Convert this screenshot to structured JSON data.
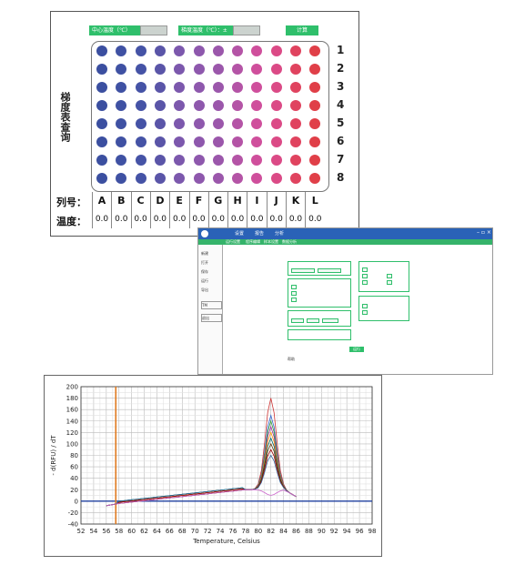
{
  "plate": {
    "center_temp_label": "中心温度（℃）",
    "gradient_temp_label": "梯度温度（℃）：±",
    "calc_button": "计算",
    "side_title": "梯度表查询",
    "row_numbers": [
      "1",
      "2",
      "3",
      "4",
      "5",
      "6",
      "7",
      "8"
    ],
    "column_header_label": "列号：",
    "temperature_label": "温度：",
    "columns": [
      "A",
      "B",
      "C",
      "D",
      "E",
      "F",
      "G",
      "H",
      "I",
      "J",
      "K",
      "L"
    ],
    "temperatures": [
      "0.0",
      "0.0",
      "0.0",
      "0.0",
      "0.0",
      "0.0",
      "0.0",
      "0.0",
      "0.0",
      "0.0",
      "0.0",
      "0.0"
    ],
    "column_colors": [
      "#3b4fa0",
      "#3f51a3",
      "#4553a6",
      "#5a55a8",
      "#7c58ad",
      "#8e58ad",
      "#9b57ab",
      "#b454a6",
      "#cf4f9c",
      "#db4a86",
      "#e0435f",
      "#e03f48"
    ]
  },
  "software": {
    "menu": [
      "设置",
      "报告",
      "分析"
    ],
    "tabs": [
      "运行设置",
      "程序编辑",
      "样本设置",
      "数据分析"
    ],
    "side_items": [
      "新建",
      "打开",
      "保存",
      "运行",
      "导出",
      "TM",
      "退出"
    ],
    "run_button": "运行",
    "footer_label": "帮助"
  },
  "chart_data": {
    "type": "line",
    "xlabel": "Temperature, Celsius",
    "ylabel": "- d(RFU) / dT",
    "xlim": [
      52,
      98
    ],
    "ylim": [
      -40,
      200
    ],
    "x_ticks": [
      52,
      54,
      56,
      58,
      60,
      62,
      64,
      66,
      68,
      70,
      72,
      74,
      76,
      78,
      80,
      82,
      84,
      86,
      88,
      90,
      92,
      94,
      96,
      98
    ],
    "y_ticks": [
      -40,
      -20,
      0,
      20,
      40,
      60,
      80,
      100,
      120,
      140,
      160,
      180,
      200
    ],
    "threshold_line_y": 0,
    "marker_x": 57.5,
    "peak_x": 82,
    "series": [
      {
        "color": "#cc3333",
        "peak": 180
      },
      {
        "color": "#3366cc",
        "peak": 150
      },
      {
        "color": "#339933",
        "peak": 140
      },
      {
        "color": "#993399",
        "peak": 130
      },
      {
        "color": "#ff9900",
        "peak": 120
      },
      {
        "color": "#006666",
        "peak": 110
      },
      {
        "color": "#663300",
        "peak": 100
      },
      {
        "color": "#990000",
        "peak": 90
      },
      {
        "color": "#336699",
        "peak": 80
      },
      {
        "color": "#cc66cc",
        "peak": 10
      }
    ]
  }
}
